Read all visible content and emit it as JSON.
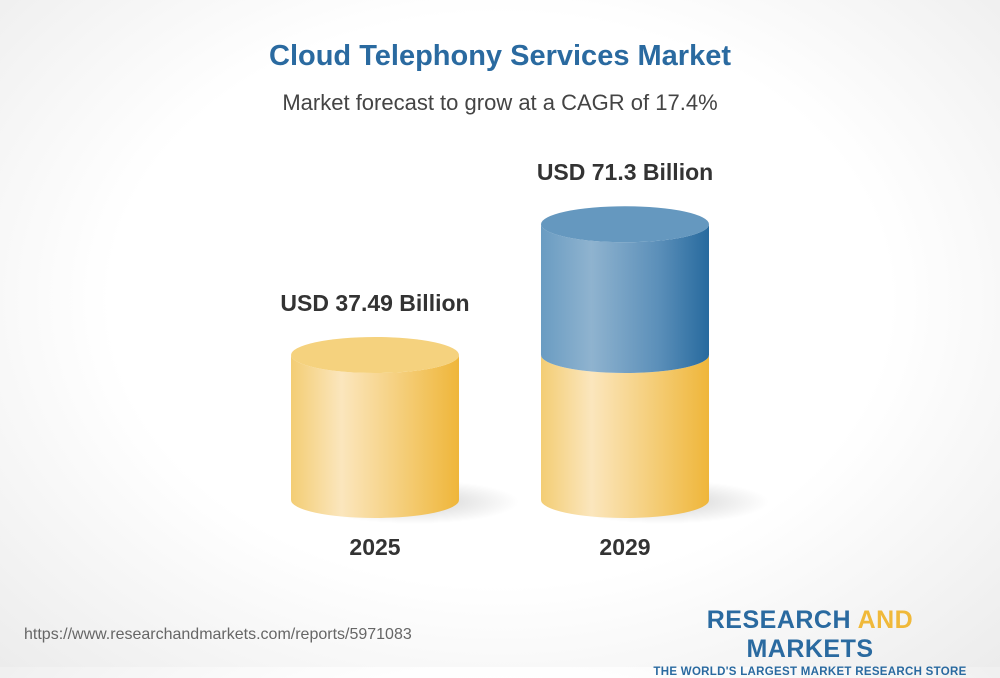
{
  "title": "Cloud Telephony Services Market",
  "subtitle": "Market forecast to grow at a CAGR of 17.4%",
  "chart_data": {
    "type": "bar",
    "style": "3d-cylinder",
    "categories": [
      "2025",
      "2029"
    ],
    "values": [
      37.49,
      71.3
    ],
    "data_labels": [
      "USD 37.49 Billion",
      "USD 71.3 Billion"
    ],
    "unit": "USD Billion",
    "colors": {
      "base": "#f0b93a",
      "growth": "#2a6aa0"
    }
  },
  "footer": {
    "url": "https://www.researchandmarkets.com/reports/5971083",
    "logo_word1": "RESEARCH",
    "logo_word2": "AND",
    "logo_word3": "MARKETS",
    "logo_tagline": "THE WORLD'S LARGEST MARKET RESEARCH STORE"
  }
}
